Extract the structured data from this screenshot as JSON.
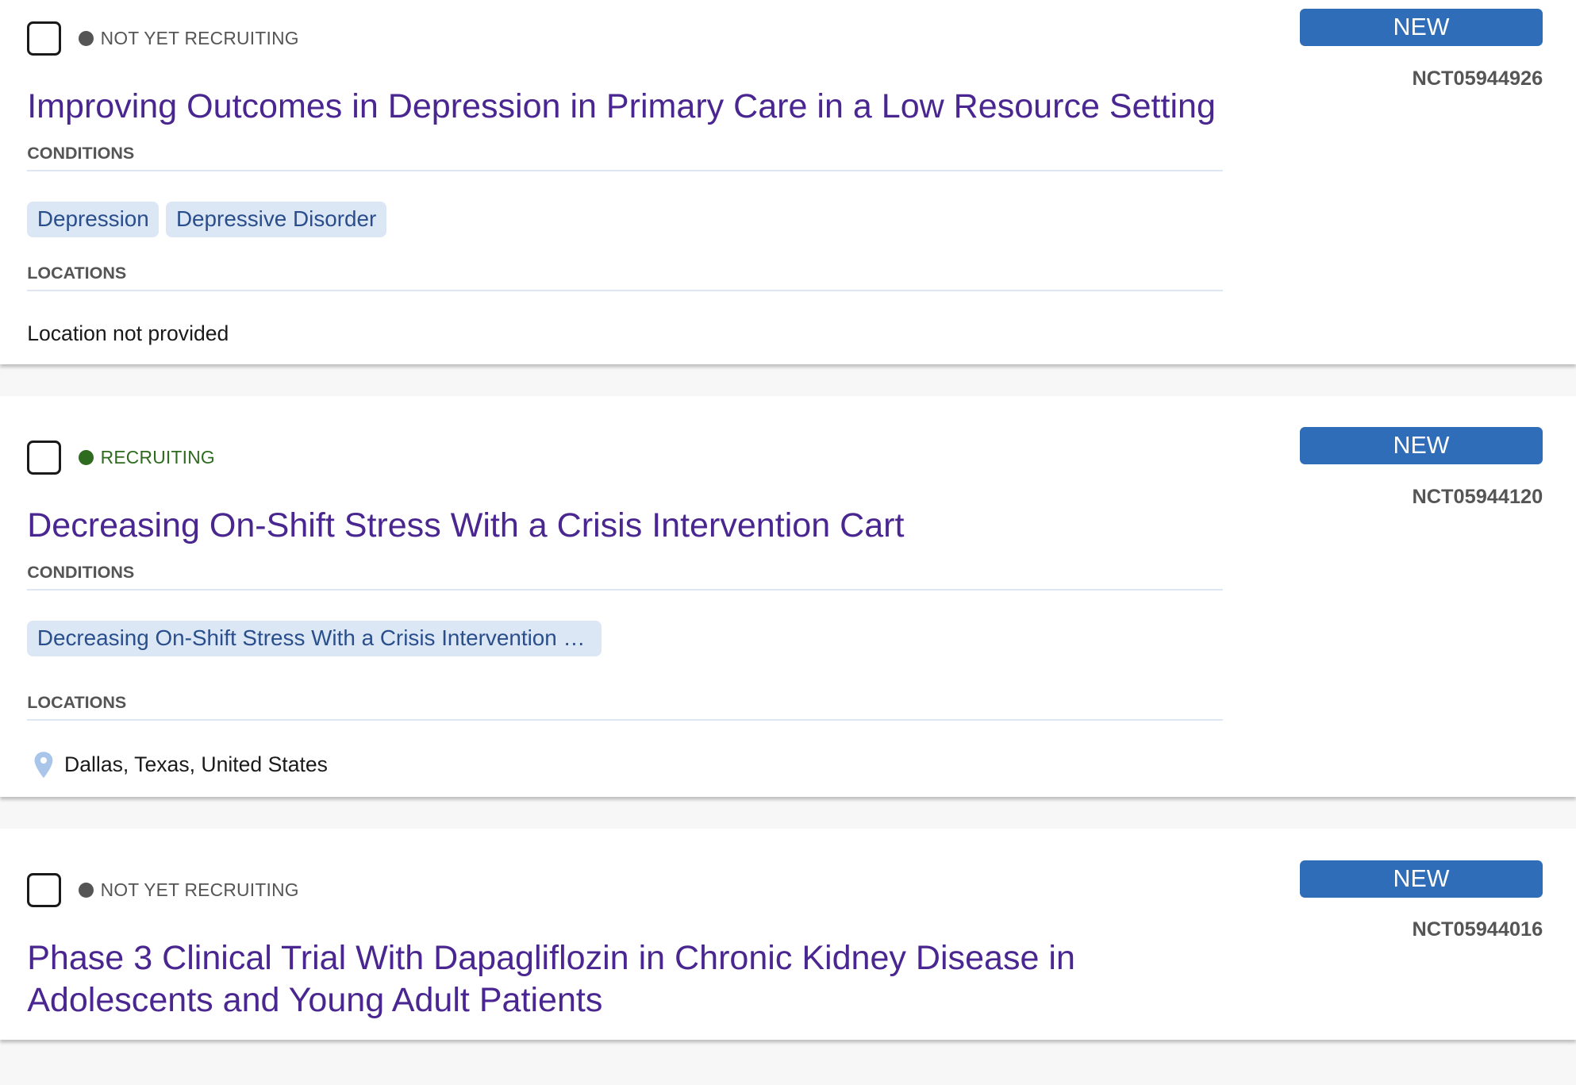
{
  "trials": [
    {
      "status": "NOT YET RECRUITING",
      "status_color": "#555555",
      "title": "Improving Outcomes in Depression in Primary Care in a Low Resource Setting",
      "conditions_label": "CONDITIONS",
      "conditions": [
        "Depression",
        "Depressive Disorder"
      ],
      "locations_label": "LOCATIONS",
      "location": "Location not provided",
      "badge": "NEW",
      "id": "NCT05944926"
    },
    {
      "status": "RECRUITING",
      "status_color": "#2e6b1f",
      "title": "Decreasing On-Shift Stress With a Crisis Intervention Cart",
      "conditions_label": "CONDITIONS",
      "conditions": [
        "Decreasing On-Shift Stress With a Crisis Intervention …"
      ],
      "locations_label": "LOCATIONS",
      "location": "Dallas, Texas, United States",
      "badge": "NEW",
      "id": "NCT05944120"
    },
    {
      "status": "NOT YET RECRUITING",
      "status_color": "#555555",
      "title": "Phase 3 Clinical Trial With Dapagliflozin in Chronic Kidney Disease in Adolescents and Young Adult Patients",
      "badge": "NEW",
      "id": "NCT05944016"
    }
  ]
}
